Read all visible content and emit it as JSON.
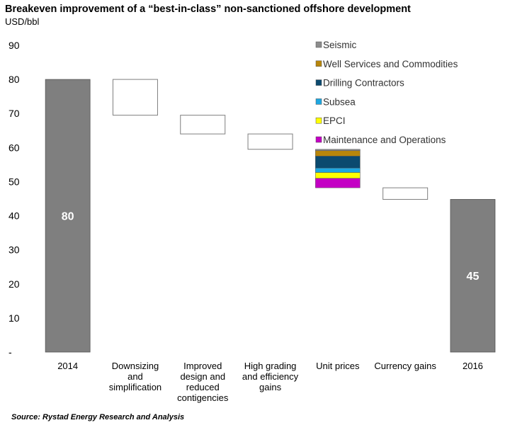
{
  "title": "Breakeven improvement of a “best-in-class” non-sanctioned offshore development",
  "unit": "USD/bbl",
  "source": "Source: Rystad Energy Research and Analysis",
  "colors": {
    "total_bar": "#7f7f7f",
    "step_fill": "#ffffff",
    "step_stroke": "#7f7f7f",
    "axis_text": "#000000"
  },
  "chart_data": {
    "type": "bar",
    "subtype": "waterfall",
    "title": "Breakeven improvement of a “best-in-class” non-sanctioned offshore development",
    "ylabel": "USD/bbl",
    "ylim": [
      0,
      90
    ],
    "yticks": [
      {
        "value": 0,
        "label": "-"
      },
      {
        "value": 10,
        "label": "10"
      },
      {
        "value": 20,
        "label": "20"
      },
      {
        "value": 30,
        "label": "30"
      },
      {
        "value": 40,
        "label": "40"
      },
      {
        "value": 50,
        "label": "50"
      },
      {
        "value": 60,
        "label": "60"
      },
      {
        "value": 70,
        "label": "70"
      },
      {
        "value": 80,
        "label": "80"
      },
      {
        "value": 90,
        "label": "90"
      }
    ],
    "categories": [
      [
        "2014"
      ],
      [
        "Downsizing",
        "and",
        "simplification"
      ],
      [
        "Improved",
        "design and",
        "reduced",
        "contigencies"
      ],
      [
        "High grading",
        "and efficiency",
        "gains"
      ],
      [
        "Unit prices"
      ],
      [
        "Currency gains"
      ],
      [
        "2016"
      ]
    ],
    "bars": [
      {
        "kind": "total",
        "bottom": 0,
        "top": 80,
        "label": "80"
      },
      {
        "kind": "step",
        "bottom": 69.5,
        "top": 80
      },
      {
        "kind": "step",
        "bottom": 64,
        "top": 69.5
      },
      {
        "kind": "step",
        "bottom": 59.5,
        "top": 64
      },
      {
        "kind": "stack",
        "bottom": 48.2,
        "top": 59.5
      },
      {
        "kind": "step",
        "bottom": 44.8,
        "top": 48.2
      },
      {
        "kind": "total",
        "bottom": 0,
        "top": 44.8,
        "label": "45"
      }
    ],
    "series": [
      {
        "name": "Seismic",
        "color": "#8c8c8c",
        "value": 0.4
      },
      {
        "name": "Well Services and Commodities",
        "color": "#b8860b",
        "value": 1.6
      },
      {
        "name": "Drilling Contractors",
        "color": "#0b4a6f",
        "value": 3.5
      },
      {
        "name": "Subsea",
        "color": "#1ea7e1",
        "value": 1.3
      },
      {
        "name": "EPCI",
        "color": "#ffff00",
        "value": 1.7
      },
      {
        "name": "Maintenance and Operations",
        "color": "#c400c4",
        "value": 2.8
      }
    ],
    "legend_position": "top-right"
  }
}
